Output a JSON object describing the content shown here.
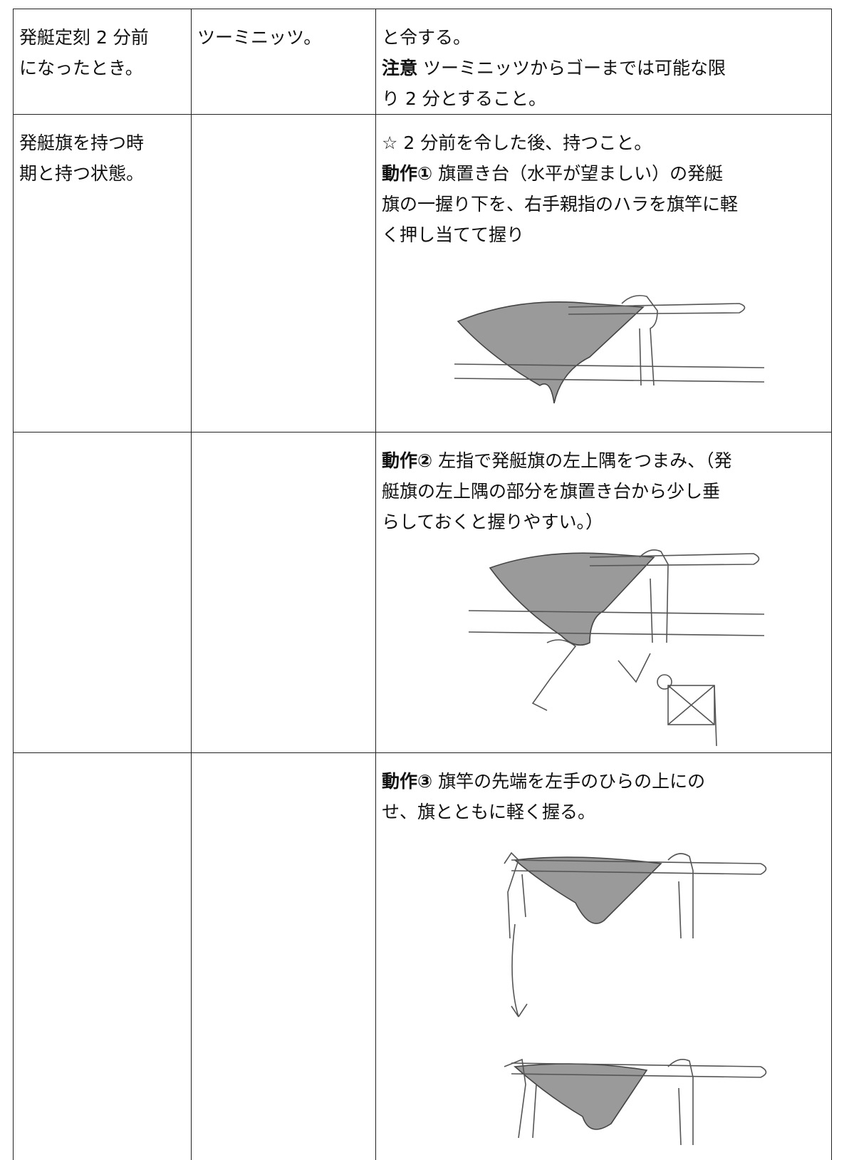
{
  "table": {
    "rows": [
      {
        "cells": [
          {
            "lines": [
              "発艇定刻 2 分前",
              "になったとき。"
            ]
          },
          {
            "lines": [
              "ツーミニッツ。"
            ]
          },
          {
            "lines": [
              "と令する。",
              {
                "label": "注意",
                "text": "ツーミニッツからゴーまでは可能な限"
              },
              "り 2 分とすること。"
            ]
          }
        ]
      },
      {
        "cells": [
          {
            "lines": [
              "発艇旗を持つ時",
              "期と持つ状態。"
            ]
          },
          {
            "lines": []
          },
          {
            "lines": [
              "☆ 2 分前を令した後、持つこと。",
              {
                "label": "動作①",
                "text": "旗置き台（水平が望ましい）の発艇"
              },
              "旗の一握り下を、右手親指のハラを旗竿に軽",
              "く押し当てて握り"
            ]
          }
        ]
      },
      {
        "cells": [
          {
            "lines": []
          },
          {
            "lines": []
          },
          {
            "lines": [
              {
                "label": "動作②",
                "text": "左指で発艇旗の左上隅をつまみ、（発"
              },
              "艇旗の左上隅の部分を旗置き台から少し垂",
              "らしておくと握りやすい。）"
            ]
          }
        ]
      },
      {
        "cells": [
          {
            "lines": []
          },
          {
            "lines": []
          },
          {
            "lines": [
              {
                "label": "動作③",
                "text": "旗竿の先端を左手のひらの上にの"
              },
              "せ、旗とともに軽く握る。"
            ]
          }
        ]
      }
    ]
  }
}
